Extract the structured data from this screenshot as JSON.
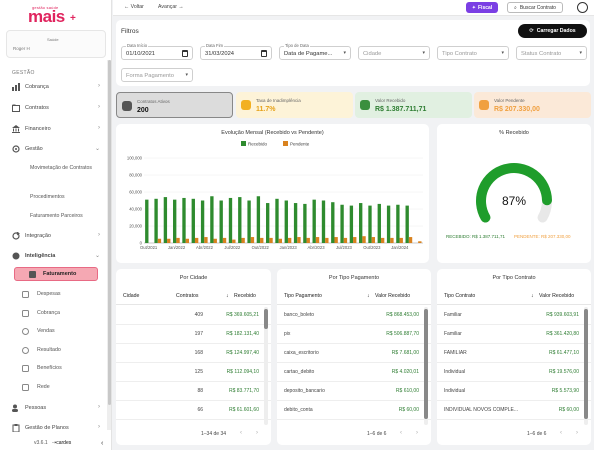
{
  "logo": {
    "tagline": "gestão saúde",
    "name": "mais"
  },
  "user": {
    "name": "Saúde",
    "role": "Roger H"
  },
  "sidebar": {
    "section": "GESTÃO",
    "items": [
      {
        "label": "Cobrança",
        "icon": "bar-chart-icon"
      },
      {
        "label": "Contratos",
        "icon": "folder-icon"
      },
      {
        "label": "Financeiro",
        "icon": "bank-icon"
      },
      {
        "label": "Gestão",
        "icon": "gear-icon"
      }
    ],
    "gestao_sub": [
      "Movimetação de Contratos",
      "Procedimentos",
      "Faturamento Parceiros"
    ],
    "integracao": "Integração",
    "inteligencia": "Inteligência",
    "inteligencia_sub": [
      {
        "label": "Faturamento",
        "active": true
      },
      {
        "label": "Despesas"
      },
      {
        "label": "Cobrança"
      },
      {
        "label": "Vendas"
      },
      {
        "label": "Resultado"
      },
      {
        "label": "Benefícios"
      },
      {
        "label": "Rede"
      }
    ],
    "pessoas": "Pessoas",
    "gestao_planos": "Gestão de Planos",
    "version": "v3.6.1",
    "brand": "cardes"
  },
  "topbar": {
    "back": "Voltar",
    "forward": "Avançar",
    "fiscal": "Fiscal",
    "search": "Buscar Contrato"
  },
  "filters": {
    "title": "Filtros",
    "load_button": "Carregar Dados",
    "data_inicio": {
      "label": "Data Início",
      "value": "01/10/2021"
    },
    "data_fim": {
      "label": "Data Fim",
      "value": "31/03/2024"
    },
    "tipo_data": {
      "label": "Tipo de Data",
      "value": "Data de Pagame..."
    },
    "cidade": {
      "placeholder": "Cidade"
    },
    "tipo_contrato": {
      "placeholder": "Tipo Contrato"
    },
    "status_contrato": {
      "placeholder": "Status Contrato"
    },
    "forma_pagamento": {
      "placeholder": "Forma Pagamento"
    }
  },
  "kpis": [
    {
      "label": "Contratos Ativos",
      "value": "200",
      "bg": "#dcdcdc",
      "fg": "#111",
      "icon_bg": "#555"
    },
    {
      "label": "Taxa de Inadimplência",
      "value": "11.7%",
      "bg": "#fdf3d8",
      "fg": "#e6a21a",
      "icon_bg": "#f2b021"
    },
    {
      "label": "Valor Recebido",
      "value": "R$ 1.387.711,71",
      "bg": "#e1f0e1",
      "fg": "#2e7d32",
      "icon_bg": "#3b8f3e"
    },
    {
      "label": "Valor Pendente",
      "value": "R$ 207.330,00",
      "bg": "#fbe9d8",
      "fg": "#f0a040",
      "icon_bg": "#f0a040"
    }
  ],
  "chart_data": [
    {
      "type": "bar",
      "title": "Evolução Mensal (Recebido vs Pendente)",
      "categories": [
        "Out/2021",
        "Nov/2021",
        "Dez/2021",
        "Jan/2022",
        "Fev/2022",
        "Mar/2022",
        "Abr/2022",
        "Mai/2022",
        "Jun/2022",
        "Jul/2022",
        "Ago/2022",
        "Set/2022",
        "Out/2022",
        "Nov/2022",
        "Dez/2022",
        "Jan/2023",
        "Fev/2023",
        "Mar/2023",
        "Abr/2023",
        "Mai/2023",
        "Jun/2023",
        "Jul/2023",
        "Ago/2023",
        "Set/2023",
        "Out/2023",
        "Nov/2023",
        "Dez/2023",
        "Jan/2024",
        "Fev/2024",
        "Mar/2024"
      ],
      "tick_labels": [
        "Out/2021",
        "Jan/2022",
        "Abr/2022",
        "Jul/2022",
        "Out/2022",
        "Jan/2023",
        "Abr/2023",
        "Jul/2023",
        "Out/2023",
        "Jan/2024"
      ],
      "series": [
        {
          "name": "Recebido",
          "color": "#2e8b2e",
          "values": [
            51000,
            52000,
            54000,
            51000,
            53000,
            52000,
            50000,
            55000,
            50000,
            53000,
            54000,
            50000,
            55000,
            47000,
            52000,
            50000,
            47000,
            46000,
            51000,
            50000,
            48000,
            45000,
            44000,
            47000,
            44000,
            46000,
            44000,
            45000,
            44000,
            0
          ]
        },
        {
          "name": "Pendente",
          "color": "#d9821f",
          "values": [
            0,
            5000,
            5000,
            6000,
            5000,
            6000,
            7000,
            5000,
            6000,
            4000,
            6000,
            7000,
            6000,
            6000,
            5000,
            6000,
            7000,
            6000,
            7000,
            6000,
            7000,
            6000,
            7000,
            8000,
            7000,
            6000,
            6000,
            6000,
            7000,
            2000
          ]
        }
      ],
      "yticks": [
        "0",
        "20,000",
        "40,000",
        "60,000",
        "80,000",
        "100,000"
      ],
      "ylim": [
        0,
        100000
      ]
    },
    {
      "type": "pie",
      "title": "% Recebido",
      "percent": 87,
      "value_label": "87%",
      "recebido_label": "RECEBIDO: R$ 1.387.711,71",
      "pendente_label": "PENDENTE: R$ 207.330,00"
    }
  ],
  "tables": {
    "cidade": {
      "title": "Por Cidade",
      "headers": [
        "Cidade",
        "Contratos",
        "Recebido"
      ],
      "rows": [
        [
          "",
          "409",
          "R$ 369.605,21"
        ],
        [
          "",
          "197",
          "R$ 182.131,40"
        ],
        [
          "",
          "168",
          "R$ 124.997,40"
        ],
        [
          "",
          "125",
          "R$ 112.094,10"
        ],
        [
          "",
          "88",
          "R$ 83.771,70"
        ],
        [
          "",
          "66",
          "R$ 61.601,60"
        ]
      ],
      "footer": "1–34 de 34"
    },
    "pagamento": {
      "title": "Por Tipo Pagamento",
      "headers": [
        "Tipo Pagamento",
        "Valor Recebido"
      ],
      "rows": [
        [
          "banco_boleto",
          "R$ 868.453,00"
        ],
        [
          "pix",
          "R$ 506.887,70"
        ],
        [
          "caixa_escritorio",
          "R$ 7.681,00"
        ],
        [
          "cartao_debito",
          "R$ 4.020,01"
        ],
        [
          "deposito_bancario",
          "R$ 610,00"
        ],
        [
          "debito_conta",
          "R$ 60,00"
        ]
      ],
      "footer": "1–6 de 6"
    },
    "contrato": {
      "title": "Por Tipo Contrato",
      "headers": [
        "Tipo Contrato",
        "Valor Recebido"
      ],
      "rows": [
        [
          "Familiar",
          "R$ 939.603,91"
        ],
        [
          "Familiar",
          "R$ 361.420,80"
        ],
        [
          "FAMILIAR",
          "R$ 61.477,10"
        ],
        [
          "Individual",
          "R$ 19.576,00"
        ],
        [
          "Individual",
          "R$ 5.573,90"
        ],
        [
          "INDIVIDUAL NOVOS COMPLE...",
          "R$ 60,00"
        ]
      ],
      "footer": "1–6 de 6"
    }
  }
}
